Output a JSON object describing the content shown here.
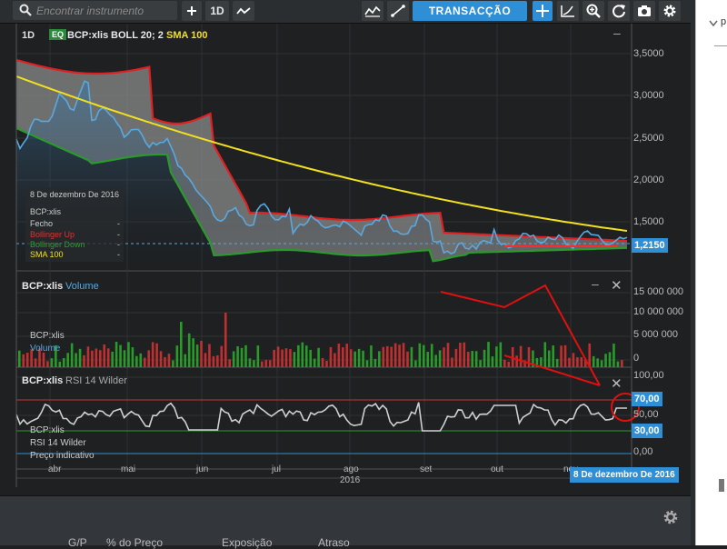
{
  "toolbar": {
    "search_placeholder": "Encontrar instrumento",
    "interval_label": "1D",
    "transaction_label": "TRANSACÇÃO"
  },
  "main_panel": {
    "interval": "1D",
    "eq_badge": "EQ",
    "instrument": "BCP:xlis",
    "boll_label": "BOLL 20; 2",
    "sma_label": "SMA 100",
    "last_price": "1,2150",
    "y_ticks": [
      "3,5000",
      "3,0000",
      "2,5000",
      "2,0000",
      "1,5000"
    ],
    "tooltip": {
      "date": "8 De dezembro De 2016",
      "name": "BCP:xlis",
      "rows": [
        {
          "label": "Fecho",
          "value": "-",
          "color": "#cfcfcf"
        },
        {
          "label": "Bollinger Up",
          "value": "-",
          "color": "#e03030"
        },
        {
          "label": "Bollinger Down",
          "value": "-",
          "color": "#2aa02a"
        },
        {
          "label": "SMA 100",
          "value": "-",
          "color": "#f0e020"
        }
      ]
    }
  },
  "volume_panel": {
    "instrument": "BCP:xlis",
    "indicator": "Volume",
    "legend_name": "BCP:xlis",
    "legend_ind": "Volume",
    "y_ticks": [
      "15 000 000",
      "10 000 000",
      "5 000 000",
      "0"
    ]
  },
  "rsi_panel": {
    "instrument": "BCP:xlis",
    "indicator": "RSI 14 Wilder",
    "legend_name": "BCP:xlis",
    "legend_ind": "RSI 14 Wilder",
    "legend_extra": "Preço indicativo",
    "y_ticks": [
      "100,00",
      "50,00",
      "0,00"
    ],
    "upper_level": "70,00",
    "lower_level": "30,00"
  },
  "x_axis": {
    "months": [
      "abr",
      "mai",
      "jun",
      "jul",
      "ago",
      "set",
      "out",
      "nov"
    ],
    "year": "2016",
    "cursor_date": "8 De dezembro De 2016"
  },
  "bottom_panel": {
    "columns": [
      "G/P",
      "% do Preço",
      "Exposição",
      "Atraso"
    ]
  },
  "side_panel": {
    "text": "p"
  },
  "colors": {
    "price_line": "#5aa8e0",
    "boll_up": "#e02020",
    "boll_down": "#2a9a2a",
    "sma": "#f0e020",
    "accent": "#2f8fd6"
  }
}
